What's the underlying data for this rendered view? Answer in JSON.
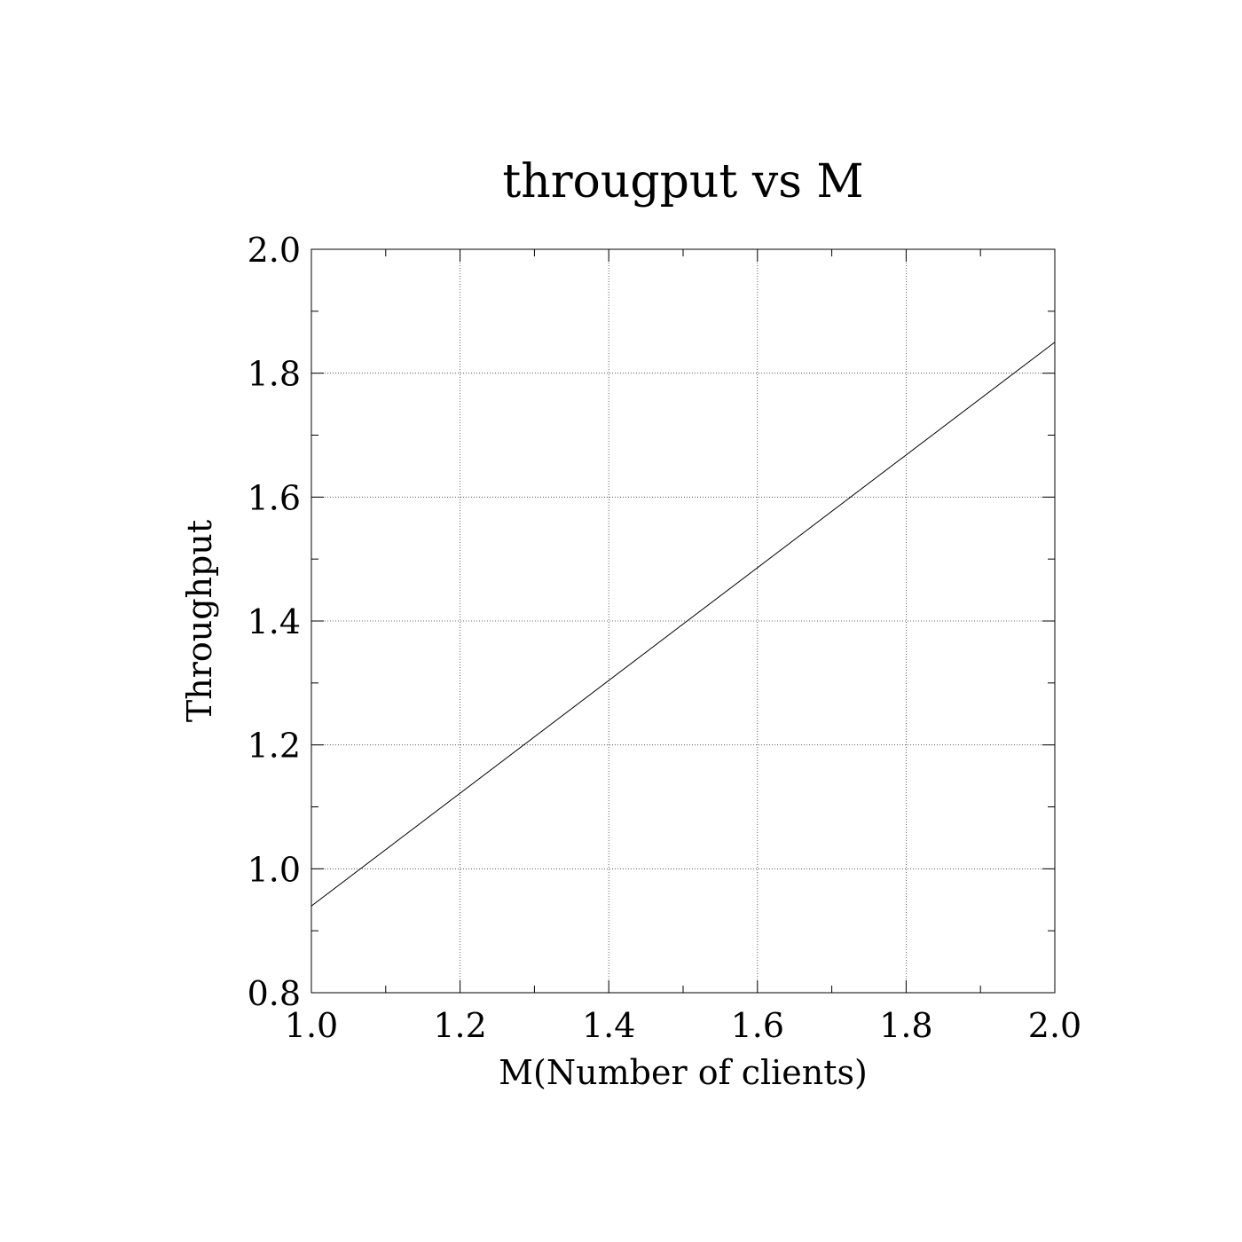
{
  "chart_data": {
    "type": "line",
    "title": "througput vs M",
    "xlabel": "M(Number of clients)",
    "ylabel": "Throughput",
    "xlim": [
      1.0,
      2.0
    ],
    "ylim": [
      0.8,
      2.0
    ],
    "x_ticks": [
      "1.0",
      "1.2",
      "1.4",
      "1.6",
      "1.8",
      "2.0"
    ],
    "y_ticks": [
      "0.8",
      "1.0",
      "1.2",
      "1.4",
      "1.6",
      "1.8",
      "2.0"
    ],
    "x_minor_step": 0.1,
    "y_minor_step": 0.1,
    "grid": true,
    "series": [
      {
        "x": [
          1.0,
          2.0
        ],
        "y": [
          0.94,
          1.85
        ]
      }
    ],
    "colors": {
      "line": "#000000",
      "grid": "#000000",
      "background": "#ffffff"
    }
  }
}
